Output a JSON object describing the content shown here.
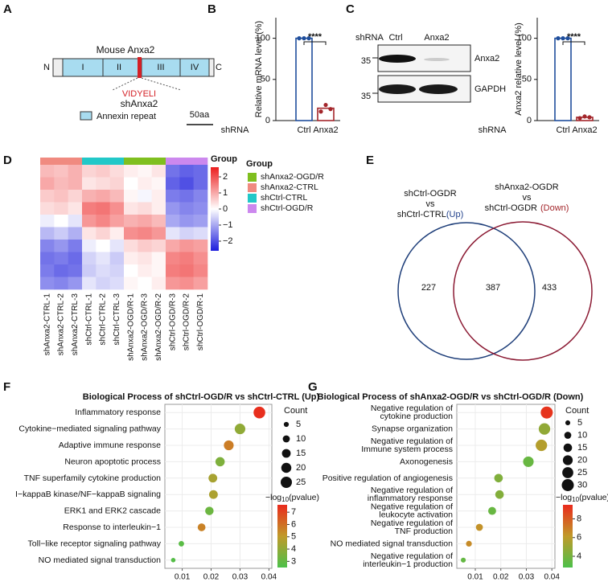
{
  "panel_labels": [
    "A",
    "B",
    "C",
    "D",
    "E",
    "F",
    "G"
  ],
  "protein_diagram": {
    "title": "Mouse Anxa2",
    "n_term": "N",
    "c_term": "C",
    "domains": [
      "I",
      "II",
      "III",
      "IV"
    ],
    "peptide": "VIDYELI",
    "target": "shAnxa2",
    "legend": "Annexin repeat",
    "scale": "50aa"
  },
  "western_blot": {
    "row_title": "shRNA",
    "lanes": [
      "Ctrl",
      "Anxa2"
    ],
    "markers": [
      "35",
      "35"
    ],
    "bands": [
      "Anxa2",
      "GAPDH"
    ]
  },
  "venn": {
    "left_lines": [
      "shCtrl-OGDR",
      "vs",
      "shCtrl-CTRL"
    ],
    "left_tag": "(Up)",
    "right_lines": [
      "shAnxa2-OGDR",
      "vs",
      "shCtrl-OGDR"
    ],
    "right_tag": "(Down)",
    "values": [
      227,
      387,
      433
    ]
  },
  "chart_data": [
    {
      "type": "bar",
      "ylabel": "Relative mRNA level (%)",
      "x_title": "shRNA",
      "categories": [
        "Ctrl",
        "Anxa2"
      ],
      "values": [
        100,
        15
      ],
      "points": [
        [
          100,
          100,
          100
        ],
        [
          11,
          19,
          14
        ]
      ],
      "colors": [
        "#1f4e9c",
        "#a3262b"
      ],
      "annotation": "****",
      "ylim": [
        0,
        125
      ],
      "yticks": [
        0,
        50,
        100
      ]
    },
    {
      "type": "bar",
      "ylabel": "Anxa2 relative level (%)",
      "x_title": "shRNA",
      "categories": [
        "Ctrl",
        "Anxa2"
      ],
      "values": [
        100,
        4
      ],
      "points": [
        [
          100,
          100,
          100
        ],
        [
          3,
          5,
          4
        ]
      ],
      "colors": [
        "#1f4e9c",
        "#a3262b"
      ],
      "annotation": "****",
      "ylim": [
        0,
        125
      ],
      "yticks": [
        0,
        50,
        100
      ]
    },
    {
      "type": "heatmap",
      "colorbar_title": "Group",
      "groups_title": "Group",
      "groups": [
        {
          "name": "shAnxa2-OGD/R",
          "color": "#7fbf1f"
        },
        {
          "name": "shAnxa2-CTRL",
          "color": "#f08a80"
        },
        {
          "name": "shCtrl-CTRL",
          "color": "#22c8c8"
        },
        {
          "name": "shCtrl-OGD/R",
          "color": "#cc88ee"
        }
      ],
      "columns": [
        "shAnxa2-CTRL-1",
        "shAnxa2-CTRL-2",
        "shAnxa2-CTRL-3",
        "shCtrl-CTRL-1",
        "shCtrl-CTRL-2",
        "shCtrl-CTRL-3",
        "shAnxa2-OGD/R-1",
        "shAnxa2-OGD/R-3",
        "shAnxa2-OGD/R-2",
        "shCtrl-OGD/R-3",
        "shCtrl-OGD/R-2",
        "shCtrl-OGD/R-1"
      ],
      "column_colors": [
        "#f08a80",
        "#f08a80",
        "#f08a80",
        "#22c8c8",
        "#22c8c8",
        "#22c8c8",
        "#7fbf1f",
        "#7fbf1f",
        "#7fbf1f",
        "#cc88ee",
        "#cc88ee",
        "#cc88ee"
      ],
      "values": [
        [
          0.8,
          0.7,
          0.9,
          0.5,
          0.6,
          0.4,
          0.2,
          0.1,
          0.3,
          -1.6,
          -1.8,
          -1.7
        ],
        [
          1.0,
          0.8,
          0.9,
          0.3,
          0.4,
          0.5,
          0.0,
          0.2,
          0.1,
          -1.8,
          -2.0,
          -1.7
        ],
        [
          0.6,
          0.7,
          0.5,
          0.9,
          1.0,
          0.8,
          0.1,
          -0.1,
          0.2,
          -1.5,
          -1.6,
          -1.4
        ],
        [
          0.4,
          0.5,
          0.3,
          1.5,
          1.6,
          1.3,
          0.3,
          0.4,
          0.2,
          -1.2,
          -1.4,
          -1.3
        ],
        [
          -0.2,
          0.0,
          -0.3,
          1.2,
          1.4,
          1.1,
          0.9,
          1.0,
          0.8,
          -1.0,
          -1.2,
          -1.1
        ],
        [
          -0.8,
          -0.6,
          -0.9,
          0.3,
          0.5,
          0.2,
          1.3,
          1.4,
          1.2,
          -0.3,
          -0.5,
          -0.4
        ],
        [
          -1.4,
          -1.2,
          -1.5,
          -0.2,
          0.0,
          -0.3,
          0.4,
          0.6,
          0.5,
          1.0,
          1.2,
          1.1
        ],
        [
          -1.6,
          -1.5,
          -1.7,
          -0.5,
          -0.3,
          -0.6,
          0.2,
          0.3,
          0.1,
          1.4,
          1.5,
          1.3
        ],
        [
          -1.5,
          -1.7,
          -1.6,
          -0.6,
          -0.4,
          -0.5,
          0.0,
          0.2,
          0.1,
          1.5,
          1.6,
          1.4
        ],
        [
          -1.3,
          -1.4,
          -1.2,
          -0.3,
          -0.5,
          -0.4,
          0.1,
          0.0,
          0.2,
          1.2,
          1.3,
          1.1
        ]
      ],
      "colormap": [
        "#1c1cdc",
        "#ffffff",
        "#ec1e1e"
      ],
      "clim": [
        -2.6,
        2.6
      ],
      "colorbar_ticks": [
        2,
        1,
        0,
        {
          "value": -1,
          "label": "−1"
        },
        {
          "value": -2,
          "label": "−2"
        }
      ]
    },
    {
      "type": "dot",
      "title": "Biological Process of shCtrl-OGD/R vs shCtrl-CTRL (Up)",
      "categories": [
        "Inflammatory response",
        "Cytokine−mediated signaling pathway",
        "Adaptive immune response",
        "Neuron apoptotic process",
        "TNF superfamily cytokine production",
        "I−kappaB kinase/NF−kappaB signaling",
        "ERK1 and ERK2 cascade",
        "Response to interleukin−1",
        "Toll−like receptor signaling pathway",
        "NO mediated signal transduction"
      ],
      "x": [
        0.0367,
        0.03,
        0.0261,
        0.0231,
        0.0206,
        0.0208,
        0.0194,
        0.0167,
        0.0097,
        0.0069
      ],
      "sizes": [
        27,
        22,
        19,
        17,
        15,
        15,
        14,
        12,
        6,
        4
      ],
      "color_values": [
        7.5,
        4.0,
        5.7,
        3.6,
        4.5,
        4.6,
        3.2,
        5.6,
        2.8,
        2.7
      ],
      "xlim": [
        0.004,
        0.041
      ],
      "xticks": [
        0.01,
        0.02,
        0.03,
        0.04
      ],
      "size_title": "Count",
      "size_legend": [
        5,
        10,
        15,
        20,
        25
      ],
      "color_title": [
        "−log",
        "10",
        "(pvalue)"
      ],
      "colormap": [
        "#4cc04a",
        "#c09a2a",
        "#ea2a1c"
      ],
      "clim": [
        2.5,
        7.6
      ],
      "color_ticks": [
        3,
        4,
        5,
        6,
        7
      ]
    },
    {
      "type": "dot",
      "title": "Biological Process of shAnxa2-OGD/R vs shCtrl-OGD/R (Down)",
      "categories": [
        [
          "Negative regulation of",
          "cytokine production"
        ],
        [
          "Synapse organization"
        ],
        [
          "Negative regulation of",
          "Immune system process"
        ],
        [
          "Axonogenesis"
        ],
        [
          "Positive regulation of angiogenesis"
        ],
        [
          "Negative regulation of",
          "inflammatory response"
        ],
        [
          "Negative regulation of",
          "leukocyte activation"
        ],
        [
          "Negative regulation of",
          "TNF production"
        ],
        [
          "NO mediated signal transduction"
        ],
        [
          "Negative regulation of",
          "interleukin−1 production"
        ]
      ],
      "x": [
        0.038,
        0.0371,
        0.0359,
        0.0308,
        0.0191,
        0.0195,
        0.0166,
        0.0116,
        0.0075,
        0.0053
      ],
      "sizes": [
        30,
        27,
        27,
        23,
        15,
        15,
        13,
        10,
        7,
        5
      ],
      "color_values": [
        9.2,
        4.8,
        5.8,
        3.6,
        4.3,
        4.4,
        3.6,
        6.4,
        6.6,
        3.5
      ],
      "xlim": [
        0.00275,
        0.0412
      ],
      "xticks": [
        0.01,
        0.02,
        0.03,
        0.04
      ],
      "size_title": "Count",
      "size_legend": [
        5,
        10,
        15,
        20,
        25,
        30
      ],
      "color_title": [
        "−log",
        "10",
        "(pvalue)"
      ],
      "colormap": [
        "#4cc04a",
        "#c09a2a",
        "#ea2a1c"
      ],
      "clim": [
        2.8,
        9.5
      ],
      "color_ticks": [
        4,
        6,
        8
      ]
    }
  ]
}
